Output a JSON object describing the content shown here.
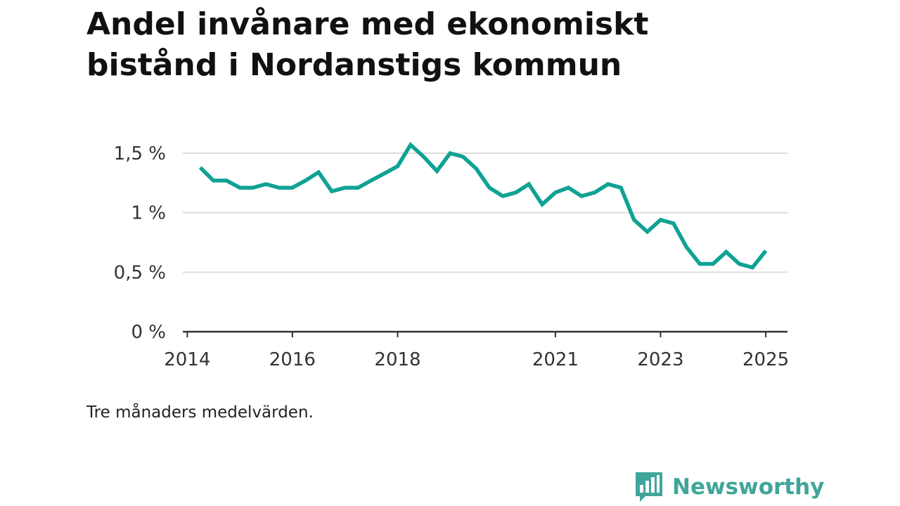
{
  "title": "Andel invånare med ekonomiskt bistånd i Nordanstigs kommun",
  "footnote": "Tre månaders medelvärden.",
  "brand": {
    "name": "Newsworthy",
    "icon": "bar-chart-speech-bubble-icon"
  },
  "colors": {
    "line": "#0fa294",
    "brand": "#40a59a",
    "grid": "#dddddd",
    "axis": "#333333"
  },
  "chart_data": {
    "type": "line",
    "title": "Andel invånare med ekonomiskt bistånd i Nordanstigs kommun",
    "xlabel": "",
    "ylabel": "",
    "ylim": [
      0,
      0.015
    ],
    "xlim": [
      "2013-12-01",
      "2025-06-01"
    ],
    "yticks": [
      0,
      0.005,
      0.01,
      0.015
    ],
    "ytick_labels": [
      "0 %",
      "0,5 %",
      "1 %",
      "1,5 %"
    ],
    "xticks": [
      "2014-01-01",
      "2016-01-01",
      "2018-01-01",
      "2021-01-01",
      "2023-01-01",
      "2025-01-01"
    ],
    "xtick_labels": [
      "2014",
      "2016",
      "2018",
      "2021",
      "2023",
      "2025"
    ],
    "grid": true,
    "series": [
      {
        "x": [
          "2014-04-01",
          "2014-07-01",
          "2014-10-01",
          "2015-01-01",
          "2015-04-01",
          "2015-07-01",
          "2015-10-01",
          "2016-01-01",
          "2016-04-01",
          "2016-07-01",
          "2016-10-01",
          "2017-01-01",
          "2017-04-01",
          "2017-07-01",
          "2017-10-01",
          "2018-01-01",
          "2018-04-01",
          "2018-07-01",
          "2018-10-01",
          "2019-01-01",
          "2019-04-01",
          "2019-07-01",
          "2019-10-01",
          "2020-01-01",
          "2020-04-01",
          "2020-07-01",
          "2020-10-01",
          "2021-01-01",
          "2021-04-01",
          "2021-07-01",
          "2021-10-01",
          "2022-01-01",
          "2022-04-01",
          "2022-07-01",
          "2022-10-01",
          "2023-01-01",
          "2023-04-01",
          "2023-07-01",
          "2023-10-01",
          "2024-01-01",
          "2024-04-01",
          "2024-07-01",
          "2024-10-01",
          "2025-01-01"
        ],
        "values": [
          0.0138,
          0.0127,
          0.0127,
          0.0121,
          0.0121,
          0.0124,
          0.0121,
          0.0121,
          0.0127,
          0.0134,
          0.0118,
          0.0121,
          0.0121,
          0.0127,
          0.0133,
          0.0139,
          0.0157,
          0.0147,
          0.0135,
          0.015,
          0.0147,
          0.0137,
          0.0121,
          0.0114,
          0.0117,
          0.0124,
          0.0107,
          0.0117,
          0.0121,
          0.0114,
          0.0117,
          0.0124,
          0.0121,
          0.0094,
          0.0084,
          0.0094,
          0.0091,
          0.0071,
          0.0057,
          0.0057,
          0.0067,
          0.0057,
          0.0054,
          0.0068
        ]
      }
    ]
  }
}
